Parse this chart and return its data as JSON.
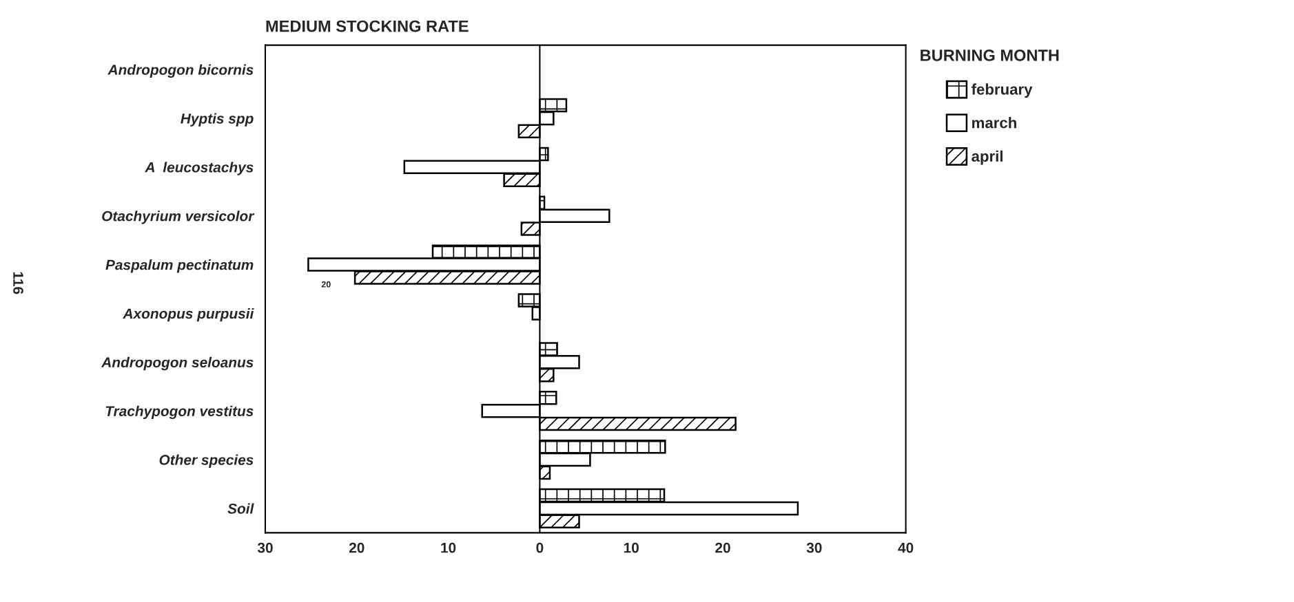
{
  "chart_data": {
    "type": "bar",
    "orientation": "horizontal",
    "title": "MEDIUM STOCKING RATE",
    "legend_title": "BURNING MONTH",
    "legend": "top right",
    "categories": [
      "Andropogon bicornis",
      "Hyptis spp",
      "A  leucostachys",
      "Otachyrium versicolor",
      "Paspalum pectinatum",
      "Axonopus purpusii",
      "Andropogon seloanus",
      "Trachypogon vestitus",
      "Other species",
      "Soil"
    ],
    "series": [
      {
        "name": "february",
        "color": "#000000",
        "values": [
          null,
          2.9,
          0.9,
          0.5,
          -11.7,
          -2.3,
          1.9,
          1.8,
          13.7,
          13.6
        ]
      },
      {
        "name": "march",
        "color": "#ffffff",
        "values": [
          null,
          1.5,
          -14.8,
          7.6,
          -25.3,
          -0.8,
          4.3,
          -6.3,
          5.5,
          28.2
        ]
      },
      {
        "name": "april",
        "color": "#000000",
        "values": [
          null,
          -2.3,
          -3.9,
          -2.0,
          -20.2,
          null,
          1.5,
          21.4,
          1.1,
          4.3
        ]
      }
    ],
    "xlim": [
      -30,
      40
    ],
    "xticks": [
      {
        "value": -30,
        "label": "30"
      },
      {
        "value": -20,
        "label": "20"
      },
      {
        "value": -10,
        "label": "10"
      },
      0,
      10,
      20,
      30,
      40
    ],
    "ref_lines": [
      {
        "axis": "x",
        "value": 0
      }
    ],
    "grid": false,
    "annotations": [
      "20",
      "116"
    ]
  }
}
